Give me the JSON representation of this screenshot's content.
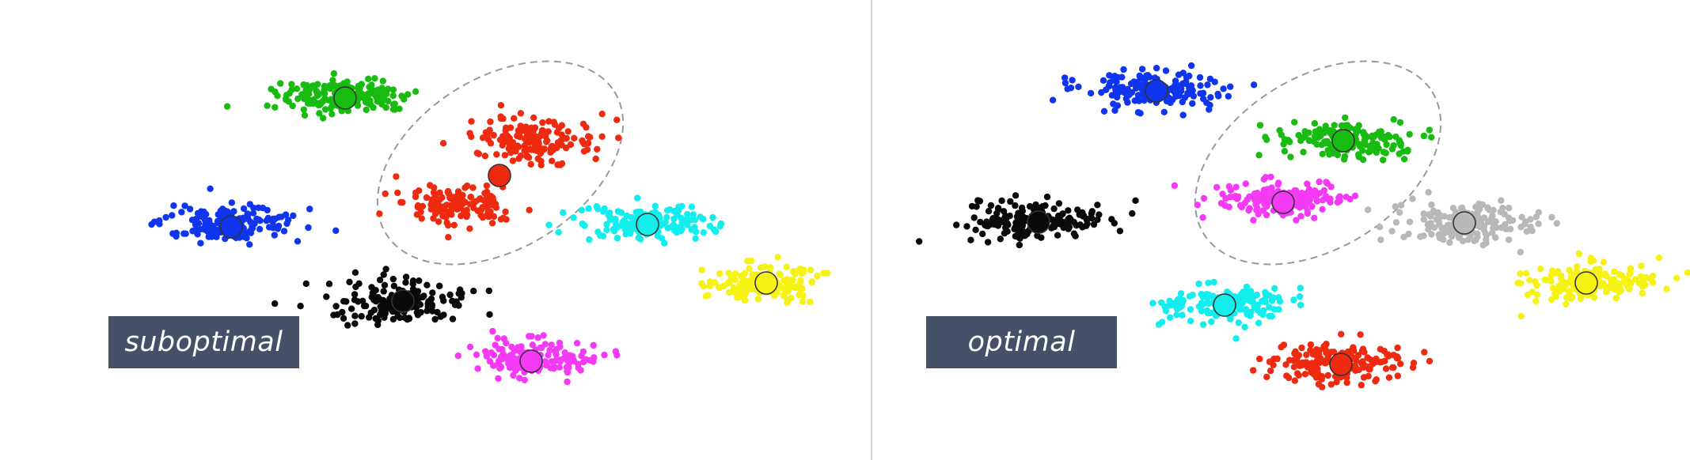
{
  "colors": {
    "divider": "#d3d3d3",
    "ellipse": "#999999",
    "badge_bg": "#465169",
    "badge_text": "#ffffff"
  },
  "panels": [
    {
      "label": "suboptimal",
      "clusters": [
        {
          "name": "green",
          "color": "#18bb10"
        },
        {
          "name": "red",
          "color": "#ee2a10"
        },
        {
          "name": "blue",
          "color": "#0f35ee"
        },
        {
          "name": "cyan",
          "color": "#12eeee"
        },
        {
          "name": "yellow",
          "color": "#f6f213"
        },
        {
          "name": "black",
          "color": "#0a0a0a"
        },
        {
          "name": "magenta",
          "color": "#f53af5"
        }
      ]
    },
    {
      "label": "optimal",
      "clusters": [
        {
          "name": "blue",
          "color": "#0f35ee"
        },
        {
          "name": "green",
          "color": "#18bb10"
        },
        {
          "name": "magenta",
          "color": "#f53af5"
        },
        {
          "name": "black",
          "color": "#0a0a0a"
        },
        {
          "name": "gray",
          "color": "#b8b8b8"
        },
        {
          "name": "yellow",
          "color": "#f6f213"
        },
        {
          "name": "cyan",
          "color": "#12eeee"
        },
        {
          "name": "red",
          "color": "#ee2a10"
        }
      ]
    }
  ]
}
